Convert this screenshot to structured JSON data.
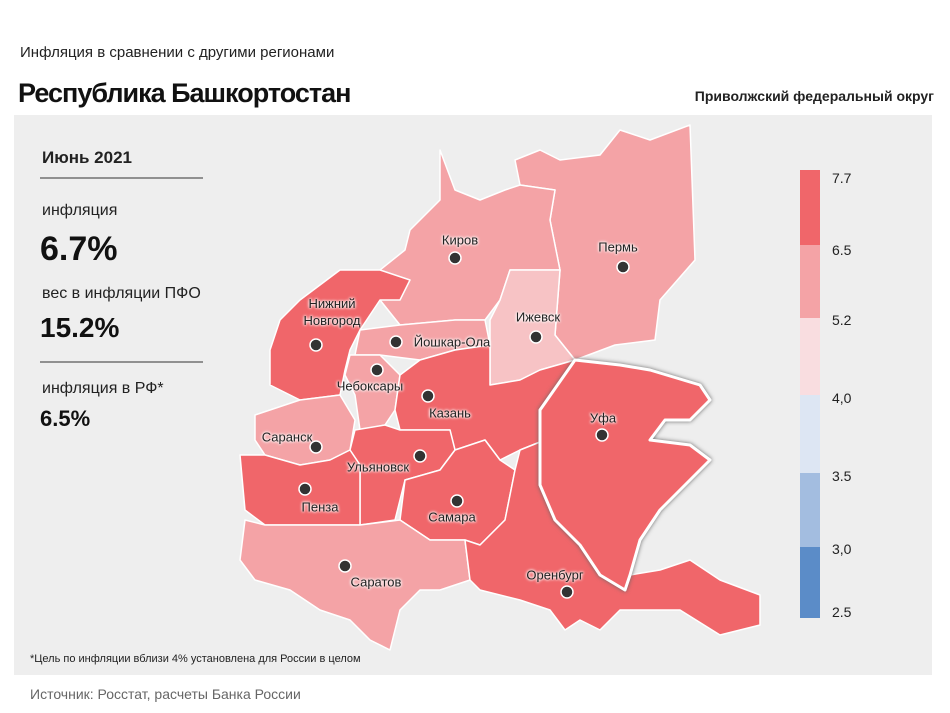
{
  "header": {
    "subtitle": "Инфляция  в сравнении  с другими  регионами",
    "title": "Республика Башкортостан",
    "district": "Приволжский федеральный округ"
  },
  "panel": {
    "period": "Июнь 2021",
    "items": [
      {
        "label": "инфляция",
        "value": "6.7%"
      },
      {
        "label": "вес в инфляции  ПФО",
        "value": "15.2%"
      },
      {
        "label": "инфляция  в РФ*",
        "value": "6.5%"
      }
    ]
  },
  "cities": [
    "Киров",
    "Пермь",
    "Ижевск",
    "Нижний Новгород",
    "Йошкар-Ола",
    "Чебоксары",
    "Казань",
    "Саранск",
    "Ульяновск",
    "Пенза",
    "Самара",
    "Саратов",
    "Оренбург",
    "Уфа"
  ],
  "legend": {
    "ticks": [
      "7.7",
      "6.5",
      "5.2",
      "4,0",
      "3.5",
      "3,0",
      "2.5"
    ]
  },
  "footnote": "*Цель по инфляции вблизи 4% установлена для России в целом",
  "source": "Источник: Росстат, расчеты Банка России"
}
